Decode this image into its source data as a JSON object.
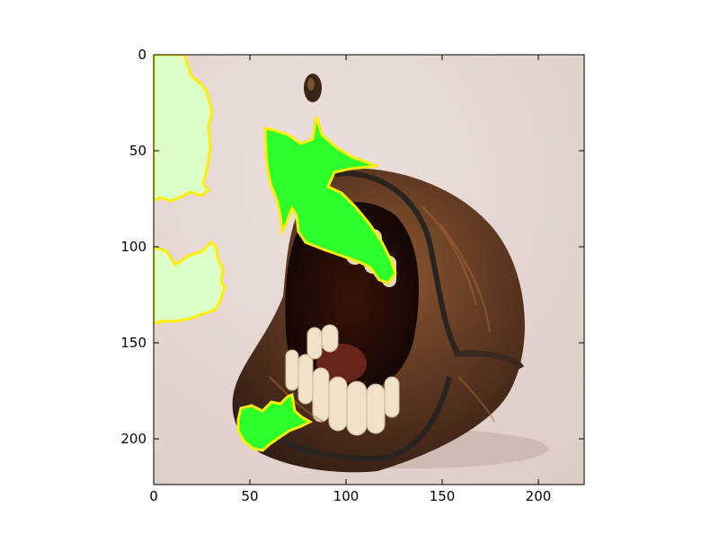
{
  "figure": {
    "x_ticks": [
      "0",
      "50",
      "100",
      "150",
      "200"
    ],
    "y_ticks": [
      "0",
      "50",
      "100",
      "150",
      "200"
    ]
  },
  "image": {
    "subject": "coin purse with teeth",
    "background_color": "#e6d8d4",
    "purse_color": "#3a2418",
    "purse_highlight_color": "#8a5530",
    "teeth_color": "#efe2c8",
    "mouth_color": "#1a0a06"
  },
  "overlay": {
    "bright_color": "#2cff2c",
    "pale_color": "#dcffc8",
    "outline_color": "#ffee00"
  }
}
